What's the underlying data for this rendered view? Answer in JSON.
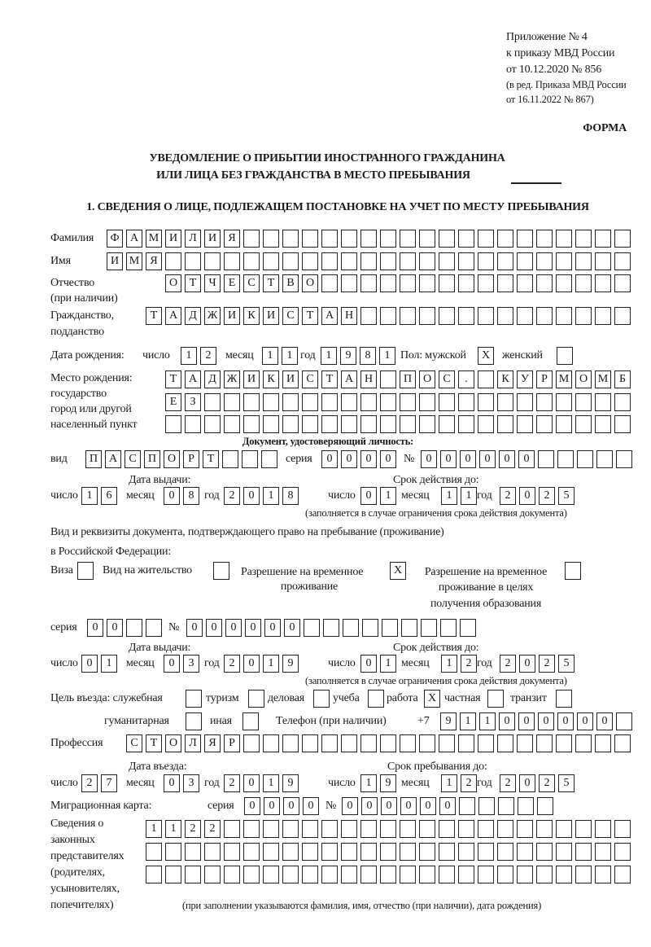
{
  "header": {
    "annex_lines": [
      "Приложение № 4",
      "к приказу МВД России",
      "от 10.12.2020 № 856",
      "(в ред. Приказа МВД России",
      "от 16.11.2022 № 867)"
    ],
    "forma": "ФОРМА",
    "title_line1": "УВЕДОМЛЕНИЕ О ПРИБЫТИИ ИНОСТРАННОГО ГРАЖДАНИНА",
    "title_line2": "ИЛИ ЛИЦА БЕЗ ГРАЖДАНСТВА В МЕСТО ПРЕБЫВАНИЯ",
    "section1": "1. СВЕДЕНИЯ О ЛИЦЕ, ПОДЛЕЖАЩЕМ ПОСТАНОВКЕ НА УЧЕТ ПО МЕСТУ ПРЕБЫВАНИЯ"
  },
  "person": {
    "surname_label": "Фамилия",
    "surname": [
      "Ф",
      "А",
      "М",
      "И",
      "Л",
      "И",
      "Я",
      "",
      "",
      "",
      "",
      "",
      "",
      "",
      "",
      "",
      "",
      "",
      "",
      "",
      "",
      "",
      "",
      "",
      "",
      "",
      ""
    ],
    "name_label": "Имя",
    "name": [
      "И",
      "М",
      "Я",
      "",
      "",
      "",
      "",
      "",
      "",
      "",
      "",
      "",
      "",
      "",
      "",
      "",
      "",
      "",
      "",
      "",
      "",
      "",
      "",
      "",
      "",
      "",
      ""
    ],
    "patronymic_label": "Отчество",
    "patronymic_note": "(при наличии)",
    "patronymic": [
      "О",
      "Т",
      "Ч",
      "Е",
      "С",
      "Т",
      "В",
      "О",
      "",
      "",
      "",
      "",
      "",
      "",
      "",
      "",
      "",
      "",
      "",
      "",
      "",
      "",
      "",
      ""
    ],
    "citizenship_label": "Гражданство,",
    "citizenship_label2": "подданство",
    "citizenship": [
      "Т",
      "А",
      "Д",
      "Ж",
      "И",
      "К",
      "И",
      "С",
      "Т",
      "А",
      "Н",
      "",
      "",
      "",
      "",
      "",
      "",
      "",
      "",
      "",
      "",
      "",
      "",
      "",
      ""
    ],
    "dob": {
      "label": "Дата рождения:",
      "day_label": "число",
      "day": [
        "1",
        "2"
      ],
      "month_label": "месяц",
      "month": [
        "1",
        "1"
      ],
      "year_label": "год",
      "year": [
        "1",
        "9",
        "8",
        "1"
      ]
    },
    "sex": {
      "male_label": "Пол: мужской",
      "male": [
        "X"
      ],
      "female_label": "женский",
      "female": [
        ""
      ]
    },
    "birthplace": {
      "label_lines": [
        "Место рождения:",
        "государство",
        "город или другой",
        "населенный пункт"
      ],
      "row1": [
        "Т",
        "А",
        "Д",
        "Ж",
        "И",
        "К",
        "И",
        "С",
        "Т",
        "А",
        "Н",
        "",
        "П",
        "О",
        "С",
        ".",
        "",
        "К",
        "У",
        "Р",
        "М",
        "О",
        "М",
        "Б"
      ],
      "row2": [
        "Е",
        "З",
        "",
        "",
        "",
        "",
        "",
        "",
        "",
        "",
        "",
        "",
        "",
        "",
        "",
        "",
        "",
        "",
        "",
        "",
        "",
        "",
        "",
        ""
      ],
      "row3": [
        "",
        "",
        "",
        "",
        "",
        "",
        "",
        "",
        "",
        "",
        "",
        "",
        "",
        "",
        "",
        "",
        "",
        "",
        "",
        "",
        "",
        "",
        "",
        ""
      ]
    }
  },
  "id_doc": {
    "title": "Документ, удостоверяющий личность:",
    "type_label": "вид",
    "type": [
      "П",
      "А",
      "С",
      "П",
      "О",
      "Р",
      "Т",
      "",
      "",
      ""
    ],
    "series_label": "серия",
    "series": [
      "0",
      "0",
      "0",
      "0"
    ],
    "number_label": "№",
    "number": [
      "0",
      "0",
      "0",
      "0",
      "0",
      "0",
      "",
      "",
      "",
      "",
      ""
    ],
    "issue_label": "Дата выдачи:",
    "issue": {
      "day_label": "число",
      "day": [
        "1",
        "6"
      ],
      "month_label": "месяц",
      "month": [
        "0",
        "8"
      ],
      "year_label": "год",
      "year": [
        "2",
        "0",
        "1",
        "8"
      ]
    },
    "validity_label": "Срок действия до:",
    "validity": {
      "day_label": "число",
      "day": [
        "0",
        "1"
      ],
      "month_label": "месяц",
      "month": [
        "1",
        "1"
      ],
      "year_label": "год",
      "year": [
        "2",
        "0",
        "2",
        "5"
      ]
    },
    "note": "(заполняется в случае ограничения срока действия документа)"
  },
  "stay_doc": {
    "line1": "Вид и реквизиты документа, подтверждающего право на пребывание (проживание)",
    "line2": "в Российской Федерации:",
    "visa_label": "Виза",
    "visa": [
      ""
    ],
    "residence_label": "Вид на жительство",
    "residence": [
      ""
    ],
    "trp_label_lines": [
      "Разрешение на временное",
      "проживание"
    ],
    "trp": [
      "X"
    ],
    "trp_edu_label_lines": [
      "Разрешение на временное",
      "проживание в целях",
      "получения образования"
    ],
    "trp_edu": [
      ""
    ],
    "series_label": "серия",
    "series": [
      "0",
      "0",
      "",
      ""
    ],
    "number_label": "№",
    "number": [
      "0",
      "0",
      "0",
      "0",
      "0",
      "0",
      "",
      "",
      "",
      "",
      "",
      "",
      "",
      "",
      ""
    ],
    "issue_label": "Дата выдачи:",
    "issue": {
      "day_label": "число",
      "day": [
        "0",
        "1"
      ],
      "month_label": "месяц",
      "month": [
        "0",
        "3"
      ],
      "year_label": "год",
      "year": [
        "2",
        "0",
        "1",
        "9"
      ]
    },
    "validity_label": "Срок действия до:",
    "validity": {
      "day_label": "число",
      "day": [
        "0",
        "1"
      ],
      "month_label": "месяц",
      "month": [
        "1",
        "2"
      ],
      "year_label": "год",
      "year": [
        "2",
        "0",
        "2",
        "5"
      ]
    },
    "note": "(заполняется в случае ограничения срока действия документа)"
  },
  "purpose": {
    "official_label": "Цель въезда: служебная",
    "official": [
      ""
    ],
    "tourism_label": "туризм",
    "tourism": [
      ""
    ],
    "business_label": "деловая",
    "business": [
      ""
    ],
    "study_label": "учеба",
    "study": [
      ""
    ],
    "work_label": "работа",
    "work": [
      "X"
    ],
    "private_label": "частная",
    "private": [
      ""
    ],
    "transit_label": "транзит",
    "transit": [
      ""
    ],
    "humanitarian_label": "гуманитарная",
    "humanitarian": [
      ""
    ],
    "other_label": "иная",
    "other": [
      ""
    ]
  },
  "phone": {
    "label": "Телефон (при наличии)",
    "prefix": "+7",
    "digits": [
      "9",
      "1",
      "1",
      "0",
      "0",
      "0",
      "0",
      "0",
      "0",
      ""
    ]
  },
  "profession": {
    "label": "Профессия",
    "value": [
      "С",
      "Т",
      "О",
      "Л",
      "Я",
      "Р",
      "",
      "",
      "",
      "",
      "",
      "",
      "",
      "",
      "",
      "",
      "",
      "",
      "",
      "",
      "",
      "",
      "",
      "",
      "",
      ""
    ]
  },
  "entry": {
    "entry_label": "Дата въезда:",
    "entry": {
      "day_label": "число",
      "day": [
        "2",
        "7"
      ],
      "month_label": "месяц",
      "month": [
        "0",
        "3"
      ],
      "year_label": "год",
      "year": [
        "2",
        "0",
        "1",
        "9"
      ]
    },
    "stay_until_label": "Срок пребывания до:",
    "stay_until": {
      "day_label": "число",
      "day": [
        "1",
        "9"
      ],
      "month_label": "месяц",
      "month": [
        "1",
        "2"
      ],
      "year_label": "год",
      "year": [
        "2",
        "0",
        "2",
        "5"
      ]
    }
  },
  "migration_card": {
    "label": "Миграционная карта:",
    "series_label": "серия",
    "series": [
      "0",
      "0",
      "0",
      "0"
    ],
    "number_label": "№",
    "number": [
      "0",
      "0",
      "0",
      "0",
      "0",
      "0",
      "",
      "",
      "",
      "",
      ""
    ]
  },
  "representatives": {
    "label_lines": [
      "Сведения о",
      "законных",
      "представителях",
      "(родителях,",
      "усыновителях,",
      "попечителях)"
    ],
    "rows": [
      [
        "1",
        "1",
        "2",
        "2",
        "",
        "",
        "",
        "",
        "",
        "",
        "",
        "",
        "",
        "",
        "",
        "",
        "",
        "",
        "",
        "",
        "",
        "",
        "",
        "",
        ""
      ],
      [
        "",
        "",
        "",
        "",
        "",
        "",
        "",
        "",
        "",
        "",
        "",
        "",
        "",
        "",
        "",
        "",
        "",
        "",
        "",
        "",
        "",
        "",
        "",
        "",
        ""
      ],
      [
        "",
        "",
        "",
        "",
        "",
        "",
        "",
        "",
        "",
        "",
        "",
        "",
        "",
        "",
        "",
        "",
        "",
        "",
        "",
        "",
        "",
        "",
        "",
        "",
        ""
      ]
    ],
    "note": "(при заполнении указываются фамилия, имя, отчество (при наличии), дата рождения)"
  }
}
